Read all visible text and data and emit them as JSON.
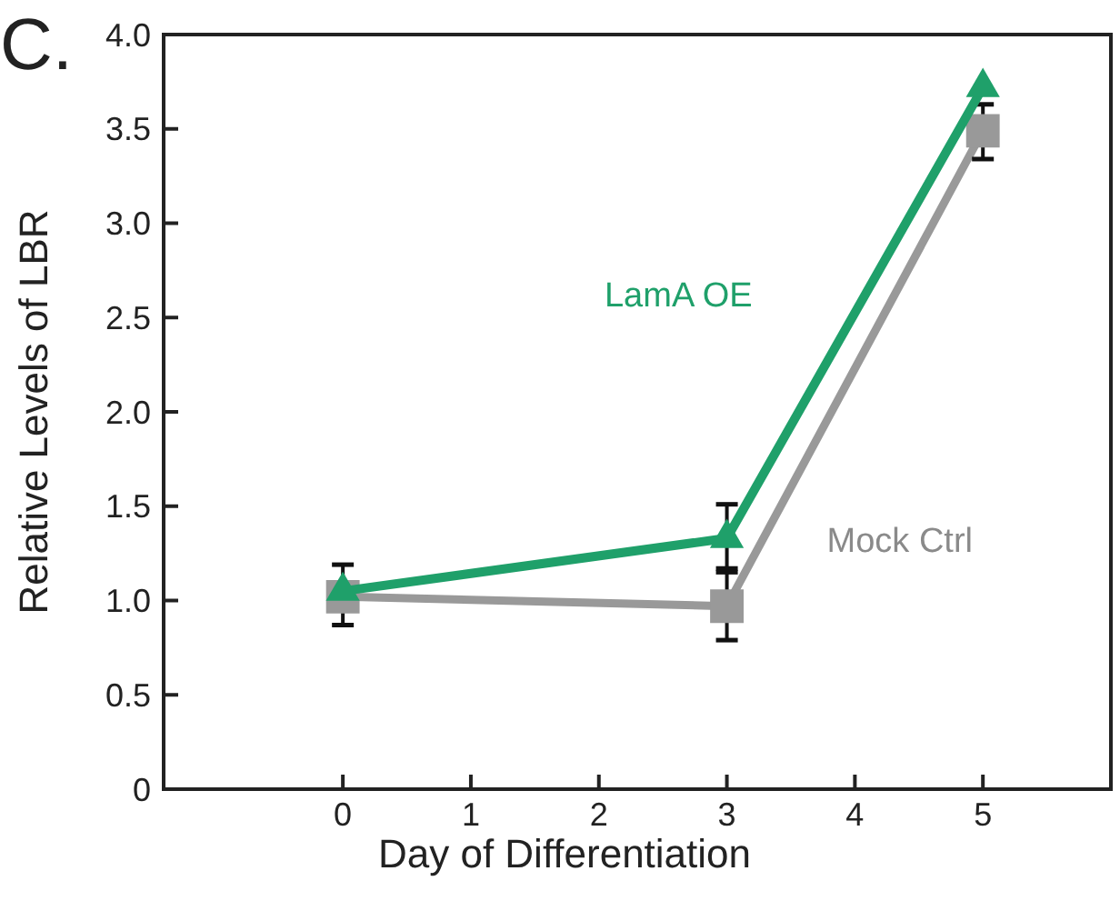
{
  "chart_data": {
    "type": "line",
    "xlabel": "Day of Differentiation",
    "ylabel": "Relative Levels of LBR",
    "x": [
      0,
      3,
      5
    ],
    "series": [
      {
        "name": "LamA OE",
        "color": "#1fa06a",
        "marker": "triangle",
        "values": [
          1.05,
          1.33,
          3.72
        ],
        "errors": [
          null,
          [
            1.15,
            1.51
          ],
          null
        ]
      },
      {
        "name": "Mock Ctrl",
        "color": "#999999",
        "marker": "square",
        "values": [
          1.02,
          0.97,
          3.49
        ],
        "errors": [
          [
            0.87,
            1.19
          ],
          [
            0.79,
            1.17
          ],
          [
            3.34,
            3.63
          ]
        ]
      }
    ],
    "xlim": [
      -1.4,
      6
    ],
    "xticks": [
      0,
      1,
      2,
      3,
      4,
      5
    ],
    "ylim": [
      0,
      4
    ],
    "yticks": [
      0,
      0.5,
      {
        "value": 1,
        "label": "1.0"
      },
      1.5,
      {
        "value": 2,
        "label": "2.0"
      },
      2.5,
      {
        "value": 3,
        "label": "3.0"
      },
      3.5,
      {
        "value": 4,
        "label": "4.0"
      }
    ],
    "grid": false,
    "line_style": "solid",
    "annotations": [
      "C."
    ]
  }
}
